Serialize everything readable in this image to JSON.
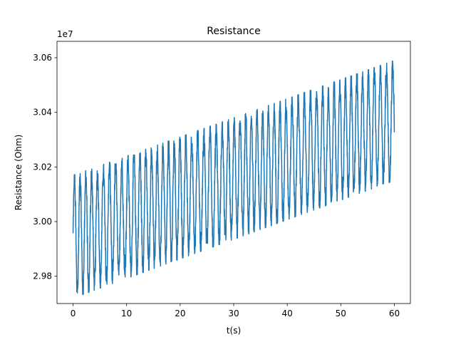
{
  "chart_data": {
    "type": "line",
    "title": "Resistance",
    "xlabel": "t(s)",
    "ylabel": "Resistance (Ohm)",
    "y_offset_label": "1e7",
    "xlim": [
      -3,
      63
    ],
    "ylim": [
      29.7,
      30.66
    ],
    "x_ticks": [
      0,
      10,
      20,
      30,
      40,
      50,
      60
    ],
    "y_ticks": [
      29.8,
      30.0,
      30.2,
      30.4,
      30.6
    ],
    "x_tick_labels": [
      "0",
      "10",
      "20",
      "30",
      "40",
      "50",
      "60"
    ],
    "y_tick_labels": [
      "2.98",
      "3.00",
      "3.02",
      "3.04",
      "3.06"
    ],
    "grid": false,
    "series": [
      {
        "color": "#1f77b4",
        "t_start": 0,
        "t_end": 60,
        "lower_envelope": {
          "x": [
            0,
            60
          ],
          "y": [
            29.72,
            30.15
          ]
        },
        "upper_envelope": {
          "x": [
            0,
            60
          ],
          "y": [
            30.17,
            30.59
          ]
        },
        "osc_period_s": 1.1
      }
    ]
  }
}
